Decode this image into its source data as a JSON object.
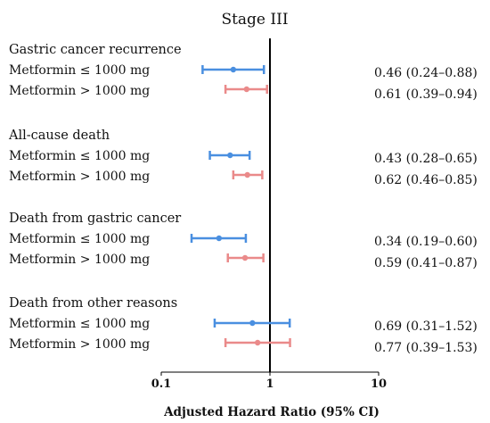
{
  "chart_data": {
    "type": "forest",
    "title": "Stage III",
    "xlabel": "Adjusted Hazard Ratio (95% CI)",
    "xscale": "log",
    "xlim": [
      0.1,
      10
    ],
    "xticks": [
      "0.1",
      "1",
      "10"
    ],
    "reference_line": 1,
    "series": [
      {
        "name": "Metformin ≤ 1000 mg",
        "color": "#4a8fe0"
      },
      {
        "name": "Metformin > 1000 mg",
        "color": "#ea8a8a"
      }
    ],
    "groups": [
      {
        "label": "Gastric cancer recurrence",
        "rows": [
          {
            "label": "Metformin ≤ 1000 mg",
            "hr": 0.46,
            "lo": 0.24,
            "hi": 0.88,
            "text": "0.46 (0.24–0.88)"
          },
          {
            "label": "Metformin > 1000 mg",
            "hr": 0.61,
            "lo": 0.39,
            "hi": 0.94,
            "text": "0.61 (0.39–0.94)"
          }
        ]
      },
      {
        "label": "All-cause death",
        "rows": [
          {
            "label": "Metformin ≤ 1000 mg",
            "hr": 0.43,
            "lo": 0.28,
            "hi": 0.65,
            "text": "0.43 (0.28–0.65)"
          },
          {
            "label": "Metformin > 1000 mg",
            "hr": 0.62,
            "lo": 0.46,
            "hi": 0.85,
            "text": "0.62 (0.46–0.85)"
          }
        ]
      },
      {
        "label": "Death from gastric cancer",
        "rows": [
          {
            "label": "Metformin ≤ 1000 mg",
            "hr": 0.34,
            "lo": 0.19,
            "hi": 0.6,
            "text": "0.34 (0.19–0.60)"
          },
          {
            "label": "Metformin > 1000 mg",
            "hr": 0.59,
            "lo": 0.41,
            "hi": 0.87,
            "text": "0.59 (0.41–0.87)"
          }
        ]
      },
      {
        "label": "Death from other reasons",
        "rows": [
          {
            "label": "Metformin ≤ 1000 mg",
            "hr": 0.69,
            "lo": 0.31,
            "hi": 1.52,
            "text": "0.69 (0.31–1.52)"
          },
          {
            "label": "Metformin > 1000 mg",
            "hr": 0.77,
            "lo": 0.39,
            "hi": 1.53,
            "text": "0.77 (0.39–1.53)"
          }
        ]
      }
    ]
  }
}
